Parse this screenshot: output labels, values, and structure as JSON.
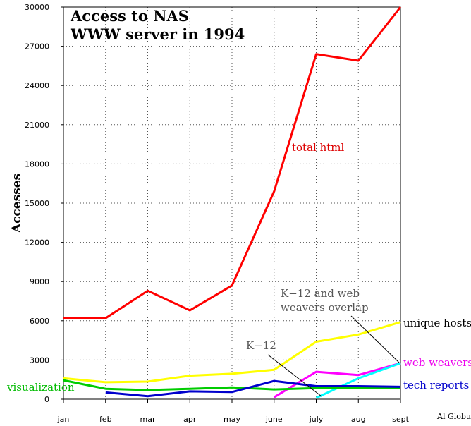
{
  "chart_data": {
    "type": "line",
    "title_lines": [
      "Access to NAS",
      "WWW server in 1994"
    ],
    "xlabel": "",
    "ylabel": "Accesses",
    "ylim": [
      0,
      30000
    ],
    "yticks": [
      0,
      3000,
      6000,
      9000,
      12000,
      15000,
      18000,
      21000,
      24000,
      27000,
      30000
    ],
    "categories": [
      "jan",
      "feb",
      "mar",
      "apr",
      "may",
      "june",
      "july",
      "aug",
      "sept"
    ],
    "grid": true,
    "credit": "Al Globus",
    "series": [
      {
        "name": "total html",
        "color": "#ff0000",
        "values": [
          6200,
          6200,
          8300,
          6800,
          8700,
          15900,
          26400,
          25900,
          30000
        ]
      },
      {
        "name": "unique hosts",
        "color": "#ffff00",
        "values": [
          1600,
          1300,
          1350,
          1800,
          1950,
          2250,
          4400,
          4950,
          5900
        ]
      },
      {
        "name": "web weavers",
        "color": "#ff00ff",
        "values": [
          null,
          null,
          null,
          null,
          null,
          150,
          2100,
          1850,
          2750
        ]
      },
      {
        "name": "tech reports",
        "color": "#0000cc",
        "values": [
          null,
          520,
          230,
          600,
          550,
          1400,
          1000,
          1000,
          950
        ]
      },
      {
        "name": "visualization",
        "color": "#00cc00",
        "values": [
          1450,
          800,
          700,
          800,
          900,
          750,
          850,
          850,
          850
        ]
      },
      {
        "name": "K-12",
        "color": "#00ffff",
        "values": [
          null,
          null,
          null,
          null,
          null,
          null,
          100,
          1600,
          2750
        ]
      }
    ],
    "annotations": [
      {
        "id": "k12",
        "lines": [
          "K−12"
        ]
      },
      {
        "id": "overlap",
        "lines": [
          "K−12 and web",
          "weavers overlap"
        ]
      }
    ]
  }
}
